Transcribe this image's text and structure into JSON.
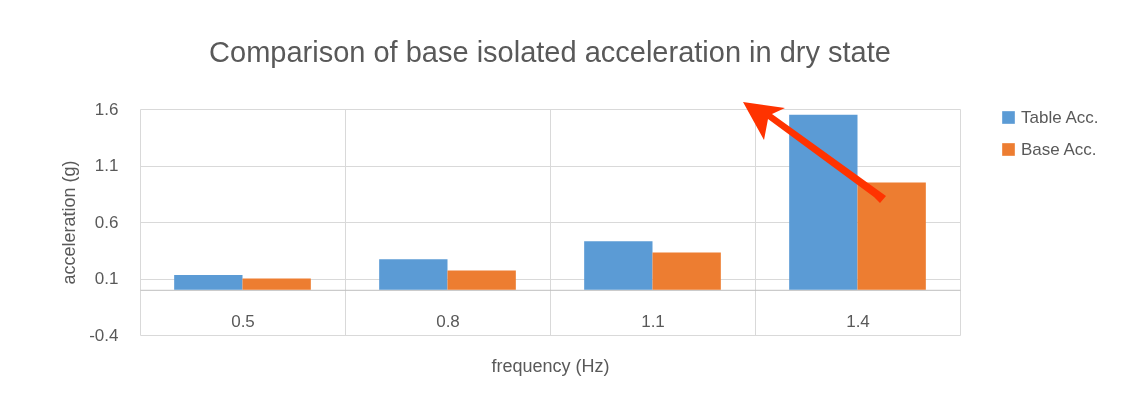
{
  "chart_data": {
    "type": "bar",
    "title": "Comparison of base isolated acceleration in dry state",
    "xlabel": "frequency (Hz)",
    "ylabel": "acceleration (g)",
    "categories": [
      "0.5",
      "0.8",
      "1.1",
      "1.4"
    ],
    "series": [
      {
        "name": "Table Acc.",
        "color": "#5b9bd5",
        "values": [
          0.13,
          0.27,
          0.43,
          1.55
        ]
      },
      {
        "name": "Base Acc.",
        "color": "#ed7d31",
        "values": [
          0.1,
          0.17,
          0.33,
          0.95
        ]
      }
    ],
    "ylim": [
      -0.4,
      1.6
    ],
    "yticks": [
      -0.4,
      0.1,
      0.6,
      1.1,
      1.6
    ],
    "grid": true,
    "legend": "right"
  }
}
